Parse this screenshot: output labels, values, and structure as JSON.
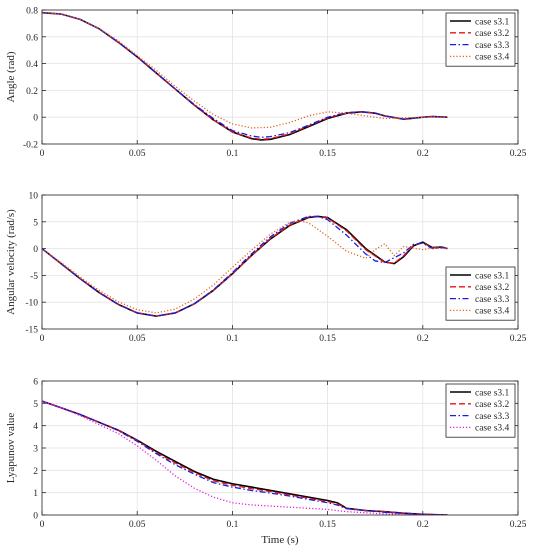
{
  "chart_data": [
    {
      "type": "line",
      "ylabel": "Angle (rad)",
      "xlabel": "",
      "xlim": [
        0,
        0.25
      ],
      "ylim": [
        -0.2,
        0.8
      ],
      "xticks": [
        0,
        0.05,
        0.1,
        0.15,
        0.2,
        0.25
      ],
      "xtick_labels": [
        "0",
        "0.05",
        "0.1",
        "0.15",
        "0.2",
        "0.25"
      ],
      "yticks": [
        -0.2,
        0,
        0.2,
        0.4,
        0.6,
        0.8
      ],
      "ytick_labels": [
        "-0.2",
        "0",
        "0.2",
        "0.4",
        "0.6",
        "0.8"
      ],
      "grid": true,
      "legend_position": "top-right",
      "series": [
        {
          "name": "case s3.1",
          "color": "#000000",
          "style": "solid",
          "x": [
            0,
            0.01,
            0.02,
            0.03,
            0.04,
            0.05,
            0.06,
            0.07,
            0.08,
            0.09,
            0.1,
            0.11,
            0.115,
            0.12,
            0.13,
            0.14,
            0.15,
            0.16,
            0.168,
            0.175,
            0.18,
            0.19,
            0.2,
            0.205,
            0.213
          ],
          "y": [
            0.78,
            0.77,
            0.73,
            0.66,
            0.56,
            0.45,
            0.33,
            0.21,
            0.09,
            -0.02,
            -0.11,
            -0.16,
            -0.17,
            -0.165,
            -0.13,
            -0.07,
            -0.01,
            0.03,
            0.04,
            0.03,
            0.01,
            -0.015,
            0.0,
            0.005,
            0.0
          ]
        },
        {
          "name": "case s3.2",
          "color": "#e4141b",
          "style": "dashed",
          "x": [
            0,
            0.01,
            0.02,
            0.03,
            0.04,
            0.05,
            0.06,
            0.07,
            0.08,
            0.09,
            0.1,
            0.11,
            0.115,
            0.12,
            0.13,
            0.14,
            0.15,
            0.16,
            0.168,
            0.175,
            0.18,
            0.19,
            0.2,
            0.205,
            0.213
          ],
          "y": [
            0.78,
            0.77,
            0.73,
            0.66,
            0.56,
            0.45,
            0.33,
            0.21,
            0.09,
            -0.02,
            -0.11,
            -0.155,
            -0.165,
            -0.16,
            -0.125,
            -0.065,
            -0.005,
            0.032,
            0.04,
            0.03,
            0.01,
            -0.015,
            0.0,
            0.005,
            0.0
          ]
        },
        {
          "name": "case s3.3",
          "color": "#1c1ce0",
          "style": "dashdot",
          "x": [
            0,
            0.01,
            0.02,
            0.03,
            0.04,
            0.05,
            0.06,
            0.07,
            0.08,
            0.09,
            0.1,
            0.11,
            0.115,
            0.12,
            0.13,
            0.14,
            0.15,
            0.16,
            0.168,
            0.175,
            0.18,
            0.19,
            0.2,
            0.205,
            0.213
          ],
          "y": [
            0.78,
            0.77,
            0.73,
            0.66,
            0.56,
            0.45,
            0.33,
            0.21,
            0.095,
            -0.01,
            -0.1,
            -0.14,
            -0.15,
            -0.145,
            -0.115,
            -0.06,
            0.0,
            0.035,
            0.04,
            0.03,
            0.01,
            -0.015,
            0.0,
            0.005,
            0.0
          ]
        },
        {
          "name": "case s3.4",
          "color": "#e2641c",
          "style": "dotted",
          "x": [
            0,
            0.01,
            0.02,
            0.03,
            0.04,
            0.05,
            0.06,
            0.07,
            0.08,
            0.09,
            0.1,
            0.11,
            0.12,
            0.13,
            0.14,
            0.15,
            0.16,
            0.17,
            0.18,
            0.19,
            0.2,
            0.213
          ],
          "y": [
            0.78,
            0.77,
            0.73,
            0.66,
            0.57,
            0.46,
            0.35,
            0.23,
            0.12,
            0.02,
            -0.05,
            -0.08,
            -0.075,
            -0.04,
            0.01,
            0.04,
            0.03,
            0.01,
            -0.01,
            -0.005,
            0.0,
            0.0
          ]
        }
      ]
    },
    {
      "type": "line",
      "ylabel": "Angular velocity (rad/s)",
      "xlabel": "",
      "xlim": [
        0,
        0.25
      ],
      "ylim": [
        -15,
        10
      ],
      "xticks": [
        0,
        0.05,
        0.1,
        0.15,
        0.2,
        0.25
      ],
      "xtick_labels": [
        "0",
        "0.05",
        "0.1",
        "0.15",
        "0.2",
        "0.25"
      ],
      "yticks": [
        -15,
        -10,
        -5,
        0,
        5,
        10
      ],
      "ytick_labels": [
        "-15",
        "-10",
        "-5",
        "0",
        "5",
        "10"
      ],
      "grid": true,
      "legend_position": "bottom-right",
      "series": [
        {
          "name": "case s3.1",
          "color": "#000000",
          "style": "solid",
          "x": [
            0,
            0.01,
            0.02,
            0.03,
            0.04,
            0.05,
            0.06,
            0.07,
            0.08,
            0.09,
            0.1,
            0.11,
            0.12,
            0.13,
            0.14,
            0.145,
            0.15,
            0.16,
            0.17,
            0.18,
            0.185,
            0.19,
            0.195,
            0.2,
            0.205,
            0.21,
            0.213
          ],
          "y": [
            0,
            -2.8,
            -5.6,
            -8.2,
            -10.4,
            -12,
            -12.6,
            -12,
            -10.3,
            -7.8,
            -4.7,
            -1.3,
            1.8,
            4.3,
            5.8,
            6.0,
            5.8,
            3.5,
            0.0,
            -2.5,
            -2.8,
            -1.5,
            0.5,
            1.2,
            0.2,
            0.3,
            0.0
          ]
        },
        {
          "name": "case s3.2",
          "color": "#e4141b",
          "style": "dashed",
          "x": [
            0,
            0.01,
            0.02,
            0.03,
            0.04,
            0.05,
            0.06,
            0.07,
            0.08,
            0.09,
            0.1,
            0.11,
            0.12,
            0.13,
            0.14,
            0.145,
            0.15,
            0.16,
            0.17,
            0.18,
            0.185,
            0.19,
            0.195,
            0.2,
            0.205,
            0.21,
            0.213
          ],
          "y": [
            0,
            -2.8,
            -5.6,
            -8.2,
            -10.4,
            -12,
            -12.6,
            -12,
            -10.3,
            -7.8,
            -4.7,
            -1.3,
            1.9,
            4.4,
            5.9,
            6.0,
            5.7,
            3.3,
            -0.2,
            -2.6,
            -2.7,
            -1.3,
            0.6,
            1.1,
            0.1,
            0.3,
            0.0
          ]
        },
        {
          "name": "case s3.3",
          "color": "#1c1ce0",
          "style": "dashdot",
          "x": [
            0,
            0.01,
            0.02,
            0.03,
            0.04,
            0.05,
            0.06,
            0.07,
            0.08,
            0.09,
            0.1,
            0.11,
            0.12,
            0.13,
            0.14,
            0.145,
            0.15,
            0.16,
            0.17,
            0.175,
            0.18,
            0.19,
            0.195,
            0.2,
            0.205,
            0.21,
            0.213
          ],
          "y": [
            0,
            -2.8,
            -5.6,
            -8.2,
            -10.4,
            -12,
            -12.6,
            -12,
            -10.3,
            -7.7,
            -4.5,
            -1.0,
            2.2,
            4.7,
            6.0,
            6.0,
            5.4,
            2.5,
            -1.0,
            -2.3,
            -2.6,
            -0.8,
            0.8,
            1.0,
            0.0,
            0.2,
            0.0
          ]
        },
        {
          "name": "case s3.4",
          "color": "#e2641c",
          "style": "dotted",
          "x": [
            0,
            0.01,
            0.02,
            0.03,
            0.04,
            0.05,
            0.06,
            0.07,
            0.08,
            0.09,
            0.1,
            0.11,
            0.12,
            0.13,
            0.135,
            0.14,
            0.15,
            0.16,
            0.17,
            0.175,
            0.18,
            0.185,
            0.19,
            0.2,
            0.205,
            0.213
          ],
          "y": [
            0,
            -2.6,
            -5.3,
            -7.8,
            -9.9,
            -11.4,
            -12,
            -11.3,
            -9.4,
            -6.8,
            -3.5,
            -0.3,
            2.7,
            4.9,
            5.2,
            4.8,
            2.3,
            -0.5,
            -1.8,
            -0.2,
            0.9,
            -1.3,
            0.4,
            -0.2,
            0.1,
            0.0
          ]
        }
      ]
    },
    {
      "type": "line",
      "ylabel": "Lyapunov value",
      "xlabel": "Time (s)",
      "xlim": [
        0,
        0.25
      ],
      "ylim": [
        0,
        6
      ],
      "xticks": [
        0,
        0.05,
        0.1,
        0.15,
        0.2,
        0.25
      ],
      "xtick_labels": [
        "0",
        "0.05",
        "0.1",
        "0.15",
        "0.2",
        "0.25"
      ],
      "yticks": [
        0,
        1,
        2,
        3,
        4,
        5,
        6
      ],
      "ytick_labels": [
        "0",
        "1",
        "2",
        "3",
        "4",
        "5",
        "6"
      ],
      "grid": true,
      "legend_position": "top-right",
      "series": [
        {
          "name": "case s3.1",
          "color": "#000000",
          "style": "solid",
          "x": [
            0,
            0.01,
            0.02,
            0.03,
            0.04,
            0.05,
            0.06,
            0.07,
            0.08,
            0.09,
            0.1,
            0.11,
            0.12,
            0.13,
            0.14,
            0.15,
            0.155,
            0.16,
            0.17,
            0.18,
            0.19,
            0.2,
            0.213
          ],
          "y": [
            5.1,
            4.8,
            4.5,
            4.15,
            3.8,
            3.35,
            2.85,
            2.4,
            1.95,
            1.6,
            1.4,
            1.25,
            1.1,
            0.95,
            0.8,
            0.65,
            0.55,
            0.3,
            0.2,
            0.15,
            0.08,
            0.03,
            0.0
          ]
        },
        {
          "name": "case s3.2",
          "color": "#e4141b",
          "style": "dashed",
          "x": [
            0,
            0.01,
            0.02,
            0.03,
            0.04,
            0.05,
            0.06,
            0.07,
            0.08,
            0.09,
            0.1,
            0.11,
            0.12,
            0.13,
            0.14,
            0.15,
            0.155,
            0.16,
            0.17,
            0.18,
            0.19,
            0.2,
            0.213
          ],
          "y": [
            5.1,
            4.8,
            4.5,
            4.15,
            3.8,
            3.33,
            2.8,
            2.33,
            1.9,
            1.53,
            1.33,
            1.18,
            1.05,
            0.9,
            0.75,
            0.6,
            0.5,
            0.3,
            0.2,
            0.15,
            0.08,
            0.03,
            0.0
          ]
        },
        {
          "name": "case s3.3",
          "color": "#1c1ce0",
          "style": "dashdot",
          "x": [
            0,
            0.01,
            0.02,
            0.03,
            0.04,
            0.05,
            0.06,
            0.07,
            0.08,
            0.09,
            0.1,
            0.11,
            0.12,
            0.13,
            0.14,
            0.15,
            0.155,
            0.16,
            0.17,
            0.18,
            0.19,
            0.2,
            0.213
          ],
          "y": [
            5.1,
            4.8,
            4.5,
            4.15,
            3.78,
            3.3,
            2.75,
            2.25,
            1.83,
            1.45,
            1.25,
            1.1,
            0.98,
            0.85,
            0.7,
            0.55,
            0.45,
            0.28,
            0.2,
            0.12,
            0.07,
            0.03,
            0.0
          ]
        },
        {
          "name": "case s3.4",
          "color": "#e21ce0",
          "style": "dotted",
          "x": [
            0,
            0.01,
            0.02,
            0.03,
            0.04,
            0.05,
            0.06,
            0.07,
            0.08,
            0.09,
            0.1,
            0.11,
            0.12,
            0.13,
            0.14,
            0.15,
            0.16,
            0.17,
            0.18,
            0.19,
            0.2,
            0.213
          ],
          "y": [
            5.1,
            4.8,
            4.45,
            4.05,
            3.65,
            3.1,
            2.45,
            1.75,
            1.2,
            0.8,
            0.55,
            0.45,
            0.4,
            0.35,
            0.3,
            0.25,
            0.15,
            0.1,
            0.05,
            0.03,
            0.01,
            0.0
          ]
        }
      ]
    }
  ]
}
